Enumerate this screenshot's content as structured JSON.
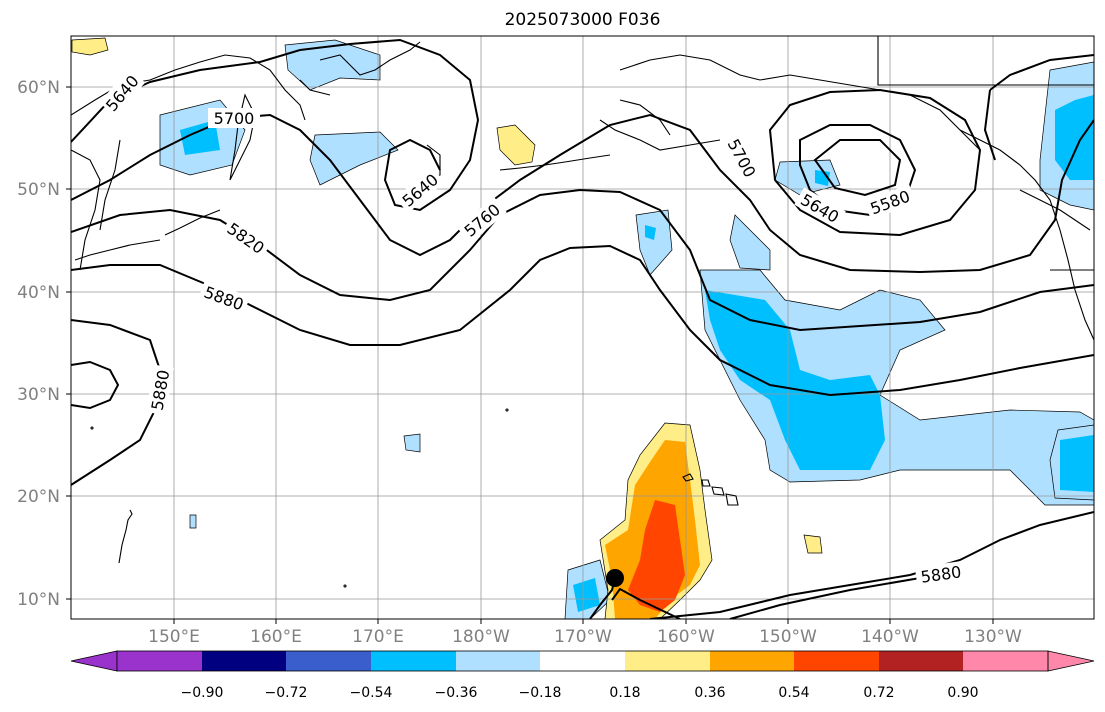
{
  "title": "2025073000 F036",
  "map": {
    "lat_ticks": [
      "60°N",
      "50°N",
      "40°N",
      "30°N",
      "20°N",
      "10°N"
    ],
    "lon_ticks": [
      "150°E",
      "160°E",
      "170°E",
      "180°W",
      "170°W",
      "160°W",
      "150°W",
      "140°W",
      "130°W"
    ],
    "contour_labels": [
      "5640",
      "5700",
      "5640",
      "5760",
      "5700",
      "5640",
      "5580",
      "5820",
      "5880",
      "5880",
      "5880"
    ],
    "storm_marker": "storm-center-dot"
  },
  "colorbar": {
    "ticks": [
      "−0.90",
      "−0.72",
      "−0.54",
      "−0.36",
      "−0.18",
      "0.18",
      "0.36",
      "0.54",
      "0.72",
      "0.90"
    ],
    "colors": [
      "#9933cc",
      "#000080",
      "#3a5fcd",
      "#00bfff",
      "#b0e0ff",
      "#ffffff",
      "#ffee88",
      "#ffa500",
      "#ff4500",
      "#b22222",
      "#ff88aa"
    ]
  }
}
